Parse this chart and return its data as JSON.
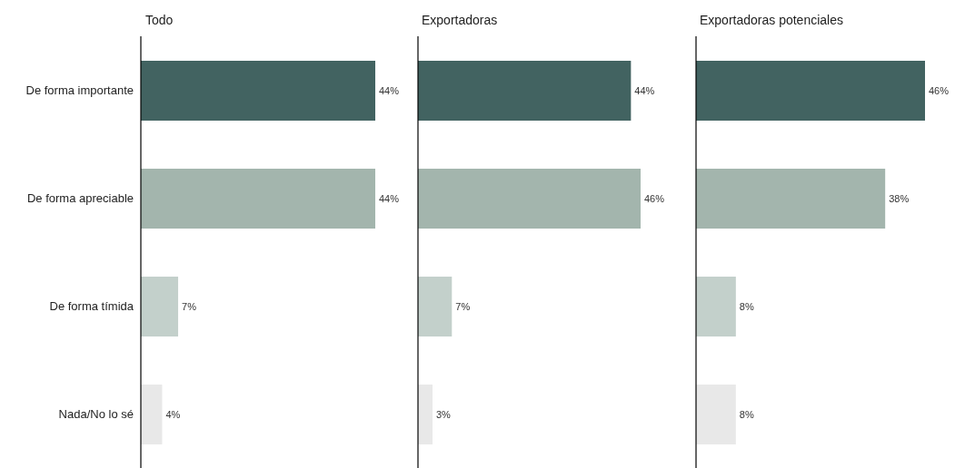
{
  "chart_data": [
    {
      "type": "bar",
      "orientation": "horizontal",
      "title": "Todo",
      "categories": [
        "De forma importante",
        "De forma apreciable",
        "De forma tímida",
        "Nada/No lo sé"
      ],
      "values": [
        44,
        44,
        7,
        4
      ],
      "colors": [
        "#426361",
        "#a3b5ad",
        "#c3d0cb",
        "#e8e8e8"
      ],
      "value_labels": [
        "44%",
        "44%",
        "7%",
        "4%"
      ],
      "tick_labels": "y"
    },
    {
      "type": "bar",
      "orientation": "horizontal",
      "title": "Exportadoras",
      "categories": [
        null,
        null,
        null,
        null
      ],
      "values": [
        44,
        46,
        7,
        3
      ],
      "colors": [
        "#426361",
        "#a3b5ad",
        "#c3d0cb",
        "#e8e8e8"
      ],
      "value_labels": [
        "44%",
        "46%",
        "7%",
        "3%"
      ],
      "tick_labels": false
    },
    {
      "type": "bar",
      "orientation": "horizontal",
      "title": "Exportadoras potenciales",
      "categories": [
        null,
        null,
        null,
        null
      ],
      "values": [
        46,
        38,
        8,
        8
      ],
      "colors": [
        "#426361",
        "#a3b5ad",
        "#c3d0cb",
        "#e8e8e8"
      ],
      "value_labels": [
        "46%",
        "38%",
        "8%",
        "8%"
      ],
      "tick_labels": false
    }
  ]
}
